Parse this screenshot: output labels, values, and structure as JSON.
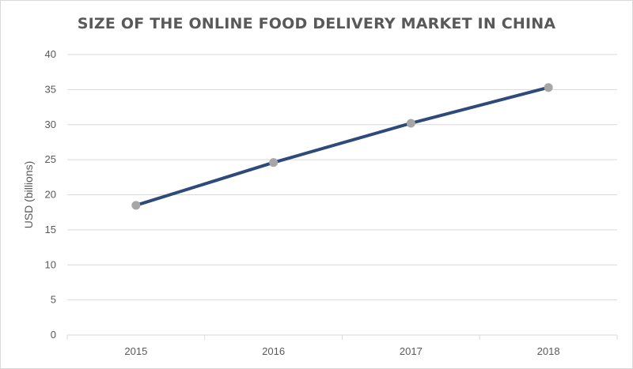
{
  "chart_data": {
    "type": "line",
    "title": "SIZE OF THE ONLINE FOOD DELIVERY MARKET IN CHINA",
    "xlabel": "",
    "ylabel": "USD (billions)",
    "categories": [
      "2015",
      "2016",
      "2017",
      "2018"
    ],
    "series": [
      {
        "values": [
          18.5,
          24.6,
          30.2,
          35.3
        ]
      }
    ],
    "ylim": [
      0,
      40
    ],
    "ystep": 5,
    "grid": true,
    "legend": "none"
  },
  "colors": {
    "line": "#2e4a7a",
    "marker": "#a6a6a6",
    "grid": "#d9d9d9",
    "text": "#595959"
  }
}
